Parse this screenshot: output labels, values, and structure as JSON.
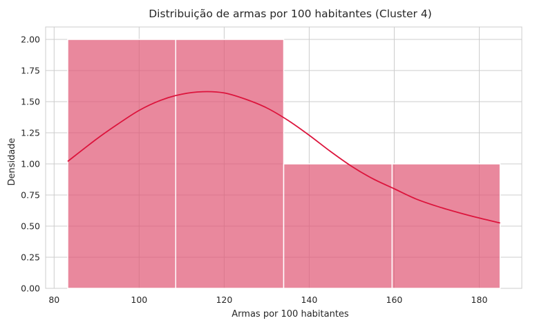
{
  "chart_data": {
    "type": "bar",
    "subtype": "histogram with kde",
    "title": "Distribuição de armas por 100 habitantes (Cluster 4)",
    "xlabel": "Armas por 100 habitantes",
    "ylabel": "Densidade",
    "xlim": [
      78,
      190
    ],
    "ylim": [
      0,
      2.1
    ],
    "grid": true,
    "xticks": [
      80,
      100,
      120,
      140,
      160,
      180
    ],
    "xtick_labels": [
      "80",
      "100",
      "120",
      "140",
      "160",
      "180"
    ],
    "yticks": [
      0,
      0.25,
      0.5,
      0.75,
      1.0,
      1.25,
      1.5,
      1.75,
      2.0
    ],
    "ytick_labels": [
      "0.00",
      "0.25",
      "0.50",
      "0.75",
      "1.00",
      "1.25",
      "1.50",
      "1.75",
      "2.00"
    ],
    "bins": [
      {
        "x0": 83.2,
        "x1": 108.6,
        "value": 2
      },
      {
        "x0": 108.6,
        "x1": 134.0,
        "value": 2
      },
      {
        "x0": 134.0,
        "x1": 159.5,
        "value": 1
      },
      {
        "x0": 159.5,
        "x1": 184.9,
        "value": 1
      }
    ],
    "kde": {
      "x": [
        83.2,
        90,
        95,
        100,
        105,
        110,
        115,
        120,
        125,
        130,
        135,
        140,
        145,
        150,
        155,
        160,
        165,
        170,
        175,
        180,
        184.9
      ],
      "y": [
        1.02,
        1.2,
        1.32,
        1.43,
        1.51,
        1.56,
        1.58,
        1.57,
        1.52,
        1.45,
        1.35,
        1.23,
        1.1,
        0.98,
        0.88,
        0.8,
        0.72,
        0.66,
        0.61,
        0.565,
        0.525
      ]
    },
    "colors": {
      "bar_fill": "#e05673",
      "bar_opacity": 0.7,
      "line": "#dc143c",
      "grid": "#cccccc",
      "text": "#262626",
      "bar_edge": "#ffffff"
    }
  }
}
